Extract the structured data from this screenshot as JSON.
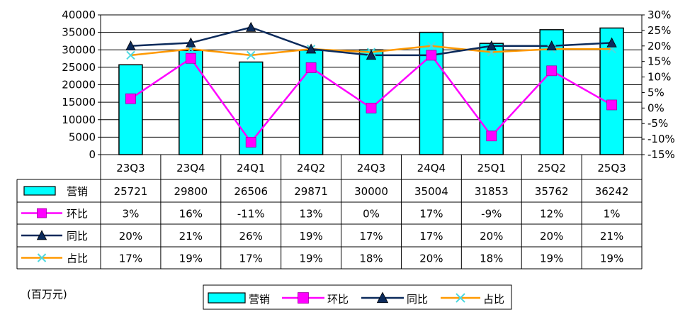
{
  "chart_data": {
    "type": "bar",
    "categories": [
      "23Q3",
      "23Q4",
      "24Q1",
      "24Q2",
      "24Q3",
      "24Q4",
      "25Q1",
      "25Q2",
      "25Q3"
    ],
    "y_left": {
      "lim": [
        0,
        40000
      ],
      "ticks": [
        "0",
        "5000",
        "10000",
        "15000",
        "20000",
        "25000",
        "30000",
        "35000",
        "40000"
      ]
    },
    "y_right": {
      "lim": [
        -15,
        30
      ],
      "unit": "%",
      "ticks": [
        "-15%",
        "-10%",
        "-5%",
        "0%",
        "5%",
        "10%",
        "15%",
        "20%",
        "25%",
        "30%"
      ]
    },
    "grid": "horizontal",
    "unit_label": "(百万元)",
    "colors": {
      "bar": "#00ffff",
      "hb": "#ff00ff",
      "tb": "#0b2a5b",
      "zb_line": "#ff9900",
      "zb_marker": "#4fd9e0"
    },
    "series": [
      {
        "name": "营销",
        "kind": "bar",
        "axis": "left",
        "values": [
          25721,
          29800,
          26506,
          29871,
          30000,
          35004,
          31853,
          35762,
          36242
        ],
        "labels": [
          "25721",
          "29800",
          "26506",
          "29871",
          "30000",
          "35004",
          "31853",
          "35762",
          "36242"
        ]
      },
      {
        "name": "环比",
        "kind": "line",
        "axis": "right",
        "marker": "square",
        "values": [
          3,
          16,
          -11,
          13,
          0,
          17,
          -9,
          12,
          1
        ],
        "labels": [
          "3%",
          "16%",
          "-11%",
          "13%",
          "0%",
          "17%",
          "-9%",
          "12%",
          "1%"
        ]
      },
      {
        "name": "同比",
        "kind": "line",
        "axis": "right",
        "marker": "triangle",
        "values": [
          20,
          21,
          26,
          19,
          17,
          17,
          20,
          20,
          21
        ],
        "labels": [
          "20%",
          "21%",
          "26%",
          "19%",
          "17%",
          "17%",
          "20%",
          "20%",
          "21%"
        ]
      },
      {
        "name": "占比",
        "kind": "line",
        "axis": "right",
        "marker": "x",
        "values": [
          17,
          19,
          17,
          19,
          18,
          20,
          18,
          19,
          19
        ],
        "labels": [
          "17%",
          "19%",
          "17%",
          "19%",
          "18%",
          "20%",
          "18%",
          "19%",
          "19%"
        ]
      }
    ]
  }
}
